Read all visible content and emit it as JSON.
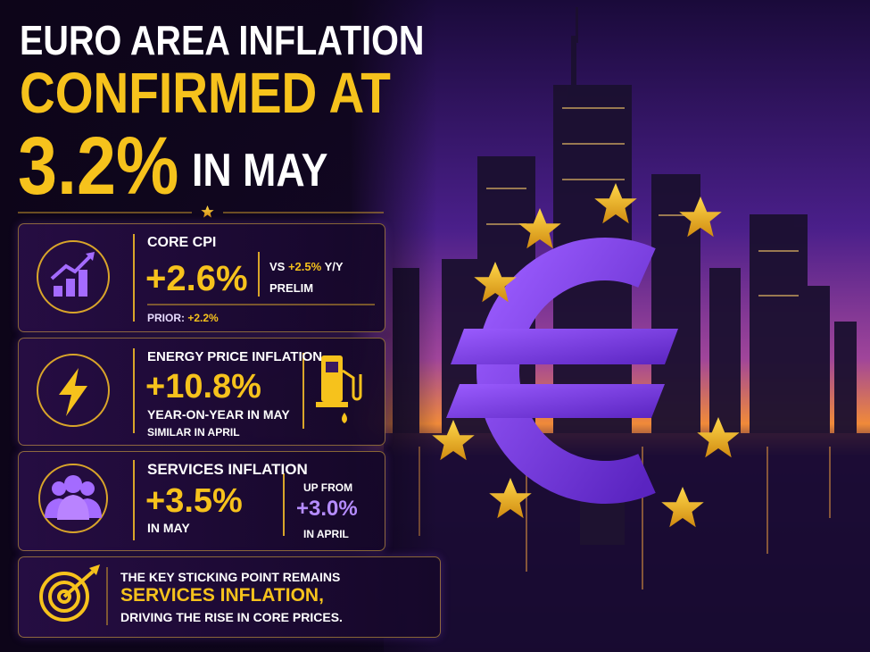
{
  "header": {
    "line1": "EURO AREA INFLATION",
    "line2": "CONFIRMED AT",
    "headline_value": "3.2%",
    "headline_suffix": "IN MAY"
  },
  "cards": [
    {
      "label": "CORE CPI",
      "value": "+2.6%",
      "compare_prefix": "VS",
      "compare_value": "+2.5%",
      "compare_suffix": "Y/Y",
      "compare_note": "PRELIM",
      "prior_label": "PRIOR:",
      "prior_value": "+2.2%"
    },
    {
      "label": "ENERGY PRICE INFLATION",
      "value": "+10.8%",
      "line1": "YEAR-ON-YEAR IN MAY",
      "line2": "SIMILAR IN APRIL"
    },
    {
      "label": "SERVICES INFLATION",
      "value": "+3.5%",
      "line1": "IN MAY",
      "compare_prefix": "UP FROM",
      "compare_value": "+3.0%",
      "compare_suffix": "IN APRIL"
    }
  ],
  "note": {
    "line1": "THE KEY STICKING POINT REMAINS",
    "highlight": "SERVICES INFLATION,",
    "line2": "DRIVING THE RISE IN CORE PRICES."
  }
}
